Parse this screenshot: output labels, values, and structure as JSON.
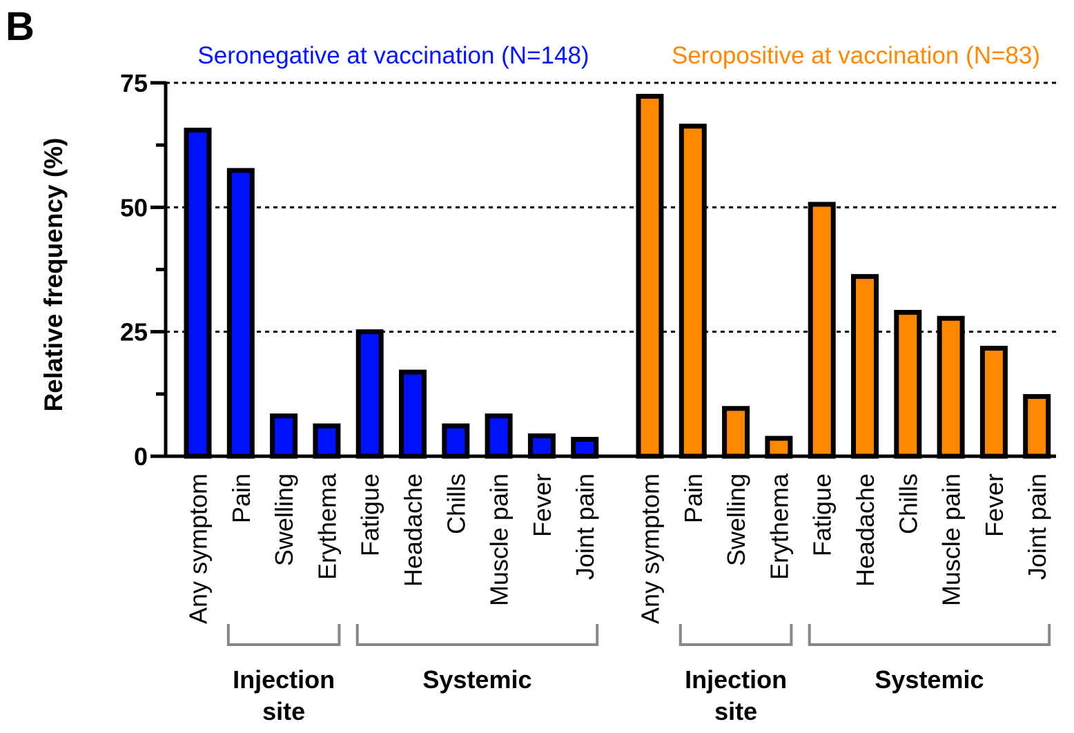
{
  "panel_label": "B",
  "chart_data": {
    "type": "bar",
    "ylabel": "Relative frequency (%)",
    "ylim": [
      0,
      75
    ],
    "yticks": [
      0,
      25,
      50,
      75
    ],
    "grid": "dotted horizontal lines at 25, 50, 75",
    "groups": [
      {
        "name": "Seronegative at vaccination (N=148)",
        "color": "#0011ff",
        "categories": [
          "Any symptom",
          "Pain",
          "Swelling",
          "Erythema",
          "Fatigue",
          "Headache",
          "Chills",
          "Muscle pain",
          "Fever",
          "Joint pain"
        ],
        "values": [
          65.5,
          57.4,
          8.1,
          6.1,
          25.0,
          16.9,
          6.1,
          8.1,
          4.1,
          3.4
        ],
        "brackets": [
          {
            "label_lines": [
              "Injection",
              "site"
            ]
          },
          {
            "label_lines": [
              "Systemic"
            ]
          }
        ]
      },
      {
        "name": "Seropositive at vaccination (N=83)",
        "color": "#ff8800",
        "categories": [
          "Any symptom",
          "Pain",
          "Swelling",
          "Erythema",
          "Fatigue",
          "Headache",
          "Chills",
          "Muscle pain",
          "Fever",
          "Joint pain"
        ],
        "values": [
          72.3,
          66.3,
          9.6,
          3.6,
          50.6,
          36.1,
          28.9,
          27.7,
          21.7,
          12.0
        ],
        "brackets": [
          {
            "label_lines": [
              "Injection",
              "site"
            ]
          },
          {
            "label_lines": [
              "Systemic"
            ]
          }
        ]
      }
    ]
  }
}
